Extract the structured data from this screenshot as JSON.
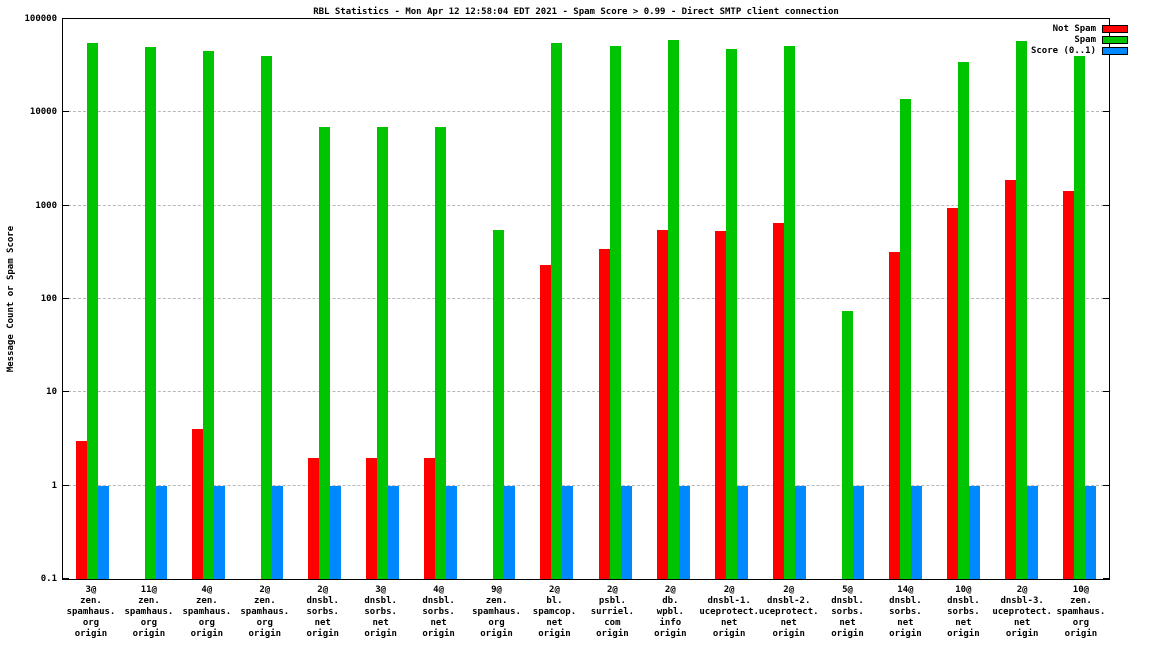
{
  "title": "RBL Statistics - Mon Apr 12 12:58:04 EDT 2021 - Spam Score > 0.99 - Direct SMTP client connection",
  "ylabel": "Message Count or Spam Score",
  "legend": [
    {
      "label": "Not Spam",
      "color": "#ff0000"
    },
    {
      "label": "Spam",
      "color": "#00c400"
    },
    {
      "label": "Score (0..1)",
      "color": "#0088ff"
    }
  ],
  "chart_data": {
    "type": "bar",
    "scale": "log",
    "ylim": [
      0.1,
      100000
    ],
    "yticks": [
      0.1,
      1,
      10,
      100,
      1000,
      10000,
      100000
    ],
    "grid": true,
    "legend_position": "top-right",
    "title": "RBL Statistics - Mon Apr 12 12:58:04 EDT 2021 - Spam Score > 0.99 - Direct SMTP client connection",
    "xlabel": "",
    "ylabel": "Message Count or Spam Score",
    "categories": [
      [
        "3@",
        "zen.",
        "spamhaus.",
        "org",
        "origin"
      ],
      [
        "11@",
        "zen.",
        "spamhaus.",
        "org",
        "origin"
      ],
      [
        "4@",
        "zen.",
        "spamhaus.",
        "org",
        "origin"
      ],
      [
        "2@",
        "zen.",
        "spamhaus.",
        "org",
        "origin"
      ],
      [
        "2@",
        "dnsbl.",
        "sorbs.",
        "net",
        "origin"
      ],
      [
        "3@",
        "dnsbl.",
        "sorbs.",
        "net",
        "origin"
      ],
      [
        "4@",
        "dnsbl.",
        "sorbs.",
        "net",
        "origin"
      ],
      [
        "9@",
        "zen.",
        "spamhaus.",
        "org",
        "origin"
      ],
      [
        "2@",
        "bl.",
        "spamcop.",
        "net",
        "origin"
      ],
      [
        "2@",
        "psbl.",
        "surriel.",
        "com",
        "origin"
      ],
      [
        "2@",
        "db.",
        "wpbl.",
        "info",
        "origin"
      ],
      [
        "2@",
        "dnsbl-1.",
        "uceprotect.",
        "net",
        "origin"
      ],
      [
        "2@",
        "dnsbl-2.",
        "uceprotect.",
        "net",
        "origin"
      ],
      [
        "5@",
        "dnsbl.",
        "sorbs.",
        "net",
        "origin"
      ],
      [
        "14@",
        "dnsbl.",
        "sorbs.",
        "net",
        "origin"
      ],
      [
        "10@",
        "dnsbl.",
        "sorbs.",
        "net",
        "origin"
      ],
      [
        "2@",
        "dnsbl-3.",
        "uceprotect.",
        "net",
        "origin"
      ],
      [
        "10@",
        "zen.",
        "spamhaus.",
        "org",
        "origin"
      ]
    ],
    "series": [
      {
        "name": "Not Spam",
        "color": "#ff0000",
        "values": [
          3,
          0,
          4,
          0,
          2,
          2,
          2,
          0,
          230,
          340,
          550,
          530,
          650,
          0,
          320,
          950,
          1900,
          1450
        ]
      },
      {
        "name": "Spam",
        "color": "#00c400",
        "values": [
          55000,
          50000,
          45000,
          40000,
          7000,
          7000,
          7000,
          550,
          55000,
          52000,
          60000,
          48000,
          52000,
          75,
          14000,
          35000,
          58000,
          40000
        ]
      },
      {
        "name": "Score (0..1)",
        "color": "#0088ff",
        "values": [
          1,
          1,
          1,
          1,
          1,
          1,
          1,
          1,
          1,
          1,
          1,
          1,
          1,
          1,
          1,
          1,
          1,
          1
        ]
      }
    ]
  }
}
